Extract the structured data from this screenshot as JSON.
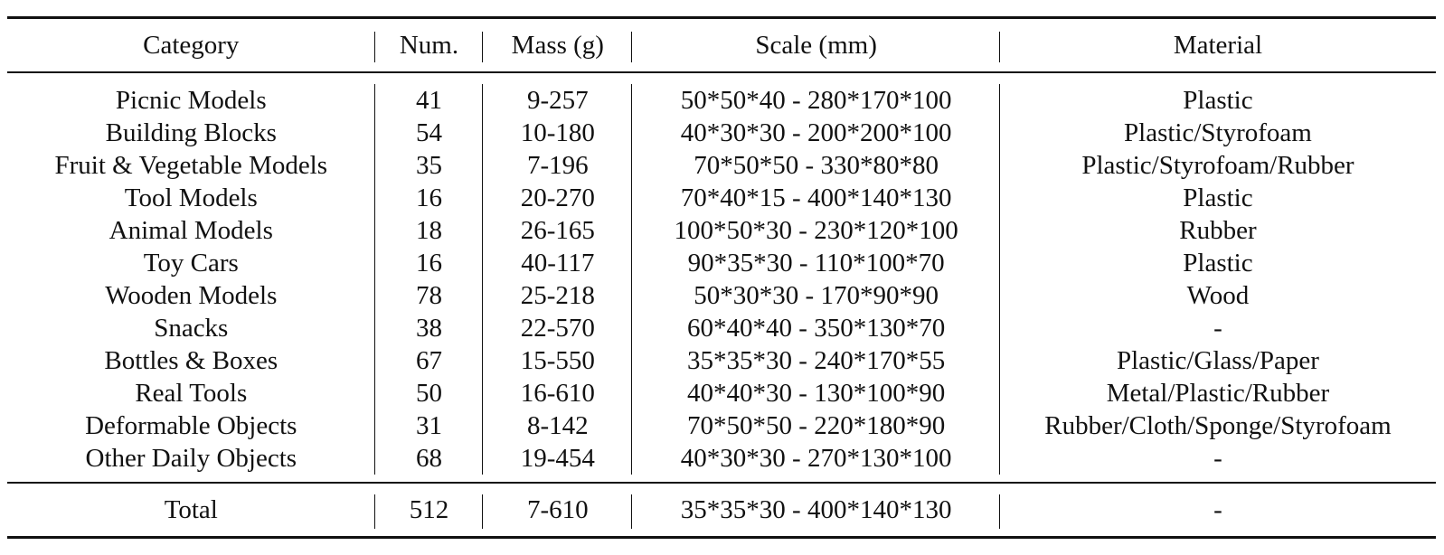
{
  "table": {
    "headers": [
      "Category",
      "Num.",
      "Mass (g)",
      "Scale (mm)",
      "Material"
    ],
    "rows": [
      [
        "Picnic Models",
        "41",
        "9-257",
        "50*50*40 - 280*170*100",
        "Plastic"
      ],
      [
        "Building Blocks",
        "54",
        "10-180",
        "40*30*30 - 200*200*100",
        "Plastic/Styrofoam"
      ],
      [
        "Fruit & Vegetable Models",
        "35",
        "7-196",
        "70*50*50 - 330*80*80",
        "Plastic/Styrofoam/Rubber"
      ],
      [
        "Tool Models",
        "16",
        "20-270",
        "70*40*15 - 400*140*130",
        "Plastic"
      ],
      [
        "Animal Models",
        "18",
        "26-165",
        "100*50*30 - 230*120*100",
        "Rubber"
      ],
      [
        "Toy Cars",
        "16",
        "40-117",
        "90*35*30 - 110*100*70",
        "Plastic"
      ],
      [
        "Wooden Models",
        "78",
        "25-218",
        "50*30*30 - 170*90*90",
        "Wood"
      ],
      [
        "Snacks",
        "38",
        "22-570",
        "60*40*40 - 350*130*70",
        "-"
      ],
      [
        "Bottles & Boxes",
        "67",
        "15-550",
        "35*35*30 - 240*170*55",
        "Plastic/Glass/Paper"
      ],
      [
        "Real Tools",
        "50",
        "16-610",
        "40*40*30 - 130*100*90",
        "Metal/Plastic/Rubber"
      ],
      [
        "Deformable Objects",
        "31",
        "8-142",
        "70*50*50 - 220*180*90",
        "Rubber/Cloth/Sponge/Styrofoam"
      ],
      [
        "Other Daily Objects",
        "68",
        "19-454",
        "40*30*30 - 270*130*100",
        "-"
      ]
    ],
    "total": [
      "Total",
      "512",
      "7-610",
      "35*35*30 - 400*140*130",
      "-"
    ]
  }
}
